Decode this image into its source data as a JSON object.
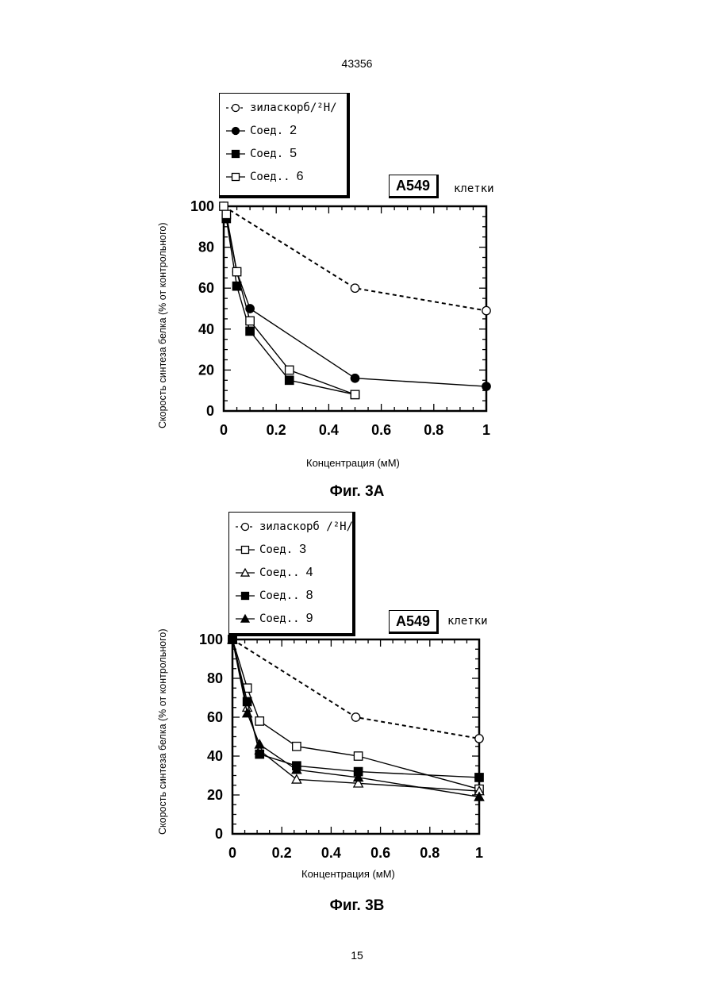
{
  "page": {
    "header_number": "43356",
    "footer_number": "15"
  },
  "figure_a": {
    "caption": "Фиг. 3А",
    "cell_tag": "A549",
    "cell_word": "клетки",
    "legend": [
      {
        "marker": "open-circle",
        "dashed": true,
        "label": "зиласкорб/²Н/",
        "num": ""
      },
      {
        "marker": "filled-circle",
        "dashed": false,
        "label": "Соед.",
        "num": "2"
      },
      {
        "marker": "filled-square",
        "dashed": false,
        "label": "Соед.",
        "num": "5"
      },
      {
        "marker": "open-square",
        "dashed": false,
        "label": "Соед..",
        "num": "6"
      }
    ]
  },
  "figure_b": {
    "caption": "Фиг. 3В",
    "cell_tag": "A549",
    "cell_word": "клетки",
    "legend": [
      {
        "marker": "open-circle",
        "dashed": true,
        "label": "зиласкорб /²Н/",
        "num": ""
      },
      {
        "marker": "open-square",
        "dashed": false,
        "label": "Соед.",
        "num": "3"
      },
      {
        "marker": "open-triangle",
        "dashed": false,
        "label": "Соед..",
        "num": "4"
      },
      {
        "marker": "filled-square",
        "dashed": false,
        "label": "Соед..",
        "num": "8"
      },
      {
        "marker": "filled-triangle",
        "dashed": false,
        "label": "Соед..",
        "num": "9"
      }
    ]
  },
  "chart_data": [
    {
      "type": "line",
      "title": "",
      "xlabel": "Концентрация (мМ)",
      "ylabel": "Скорость синтеза белка (% от контрольного)",
      "xlim": [
        0,
        1
      ],
      "ylim": [
        0,
        100
      ],
      "x_ticks": [
        "0",
        "0.2",
        "0.4",
        "0.6",
        "0.8",
        "1"
      ],
      "y_ticks": [
        "0",
        "20",
        "40",
        "60",
        "80",
        "100"
      ],
      "series": [
        {
          "name": "зиласкорб/²Н/",
          "marker": "open-circle",
          "dashed": true,
          "x": [
            0,
            0.5,
            1
          ],
          "y": [
            100,
            60,
            49
          ]
        },
        {
          "name": "Соед. 2",
          "marker": "filled-circle",
          "dashed": false,
          "x": [
            0.01,
            0.05,
            0.1,
            0.5,
            1
          ],
          "y": [
            94,
            68,
            50,
            16,
            12
          ]
        },
        {
          "name": "Соед. 5",
          "marker": "filled-square",
          "dashed": false,
          "x": [
            0.01,
            0.05,
            0.1,
            0.25,
            0.5
          ],
          "y": [
            94,
            61,
            39,
            15,
            8
          ]
        },
        {
          "name": "Соед.. 6",
          "marker": "open-square",
          "dashed": false,
          "x": [
            0,
            0.01,
            0.05,
            0.1,
            0.25,
            0.5
          ],
          "y": [
            100,
            96,
            68,
            44,
            20,
            8
          ]
        }
      ]
    },
    {
      "type": "line",
      "title": "",
      "xlabel": "Концентрация (мМ)",
      "ylabel": "Скорость синтеза белка (% от контрольного)",
      "xlim": [
        0,
        1
      ],
      "ylim": [
        0,
        100
      ],
      "x_ticks": [
        "0",
        "0.2",
        "0.4",
        "0.6",
        "0.8",
        "1"
      ],
      "y_ticks": [
        "0",
        "20",
        "40",
        "60",
        "80",
        "100"
      ],
      "series": [
        {
          "name": "зиласкорб /²Н/",
          "marker": "open-circle",
          "dashed": true,
          "x": [
            0,
            0.5,
            1
          ],
          "y": [
            100,
            60,
            49
          ]
        },
        {
          "name": "Соед. 3",
          "marker": "open-square",
          "dashed": false,
          "x": [
            0,
            0.06,
            0.11,
            0.26,
            0.51,
            1
          ],
          "y": [
            100,
            75,
            58,
            45,
            40,
            23
          ]
        },
        {
          "name": "Соед.. 4",
          "marker": "open-triangle",
          "dashed": false,
          "x": [
            0,
            0.06,
            0.11,
            0.26,
            0.51,
            1
          ],
          "y": [
            100,
            65,
            43,
            28,
            26,
            22
          ]
        },
        {
          "name": "Соед.. 8",
          "marker": "filled-square",
          "dashed": false,
          "x": [
            0,
            0.06,
            0.11,
            0.26,
            0.51,
            1
          ],
          "y": [
            100,
            68,
            41,
            35,
            32,
            29
          ]
        },
        {
          "name": "Соед.. 9",
          "marker": "filled-triangle",
          "dashed": false,
          "x": [
            0,
            0.06,
            0.11,
            0.26,
            0.51,
            1
          ],
          "y": [
            100,
            62,
            46,
            33,
            29,
            19
          ]
        }
      ]
    }
  ]
}
